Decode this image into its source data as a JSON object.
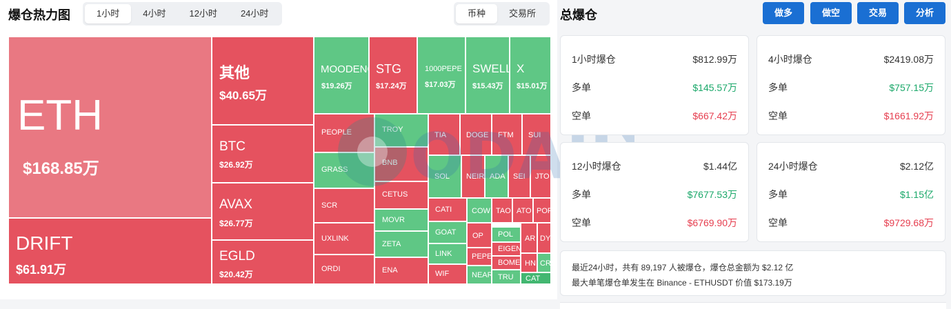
{
  "left": {
    "title": "爆仓热力图",
    "time_tabs": [
      "1小时",
      "4小时",
      "12小时",
      "24小时"
    ],
    "active_time_tab": "1小时",
    "type_tabs": [
      "币种",
      "交易所"
    ],
    "active_type_tab": "币种"
  },
  "tiles": [
    {
      "name": "ETH",
      "value": "$168.85万"
    },
    {
      "name": "DRIFT",
      "value": "$61.91万"
    },
    {
      "name": "其他",
      "value": "$40.65万"
    },
    {
      "name": "BTC",
      "value": "$26.92万"
    },
    {
      "name": "AVAX",
      "value": "$26.77万"
    },
    {
      "name": "EGLD",
      "value": "$20.42万"
    },
    {
      "name": "MOODENG",
      "value": "$19.26万"
    },
    {
      "name": "STG",
      "value": "$17.24万"
    },
    {
      "name": "1000PEPE",
      "value": "$17.03万"
    },
    {
      "name": "SWELL",
      "value": "$15.43万"
    },
    {
      "name": "X",
      "value": "$15.01万"
    },
    {
      "name": "PEOPLE"
    },
    {
      "name": "TROY"
    },
    {
      "name": "GRASS"
    },
    {
      "name": "BNB"
    },
    {
      "name": "SCR"
    },
    {
      "name": "CETUS"
    },
    {
      "name": "UXLINK"
    },
    {
      "name": "MOVR"
    },
    {
      "name": "ZETA"
    },
    {
      "name": "ORDI"
    },
    {
      "name": "ENA"
    },
    {
      "name": "TIA"
    },
    {
      "name": "DOGE"
    },
    {
      "name": "FTM"
    },
    {
      "name": "SUI"
    },
    {
      "name": "SOL"
    },
    {
      "name": "NEIR"
    },
    {
      "name": "ADA"
    },
    {
      "name": "SEI"
    },
    {
      "name": "JTO"
    },
    {
      "name": "CATI"
    },
    {
      "name": "COW"
    },
    {
      "name": "TAO"
    },
    {
      "name": "ATO"
    },
    {
      "name": "POP"
    },
    {
      "name": "GOAT"
    },
    {
      "name": "OP"
    },
    {
      "name": "POL"
    },
    {
      "name": "AR"
    },
    {
      "name": "DY"
    },
    {
      "name": "LINK"
    },
    {
      "name": "PEPE"
    },
    {
      "name": "EIGEN"
    },
    {
      "name": "WIF"
    },
    {
      "name": "NEAR"
    },
    {
      "name": "BOME"
    },
    {
      "name": "HN"
    },
    {
      "name": "CR"
    },
    {
      "name": "TRU"
    },
    {
      "name": "CAT"
    }
  ],
  "right": {
    "title": "总爆仓",
    "buttons": [
      "做多",
      "做空",
      "交易",
      "分析"
    ],
    "cards": [
      {
        "label": "1小时爆仓",
        "total": "$812.99万",
        "long_label": "多单",
        "long": "$145.57万",
        "short_label": "空单",
        "short": "$667.42万"
      },
      {
        "label": "4小时爆仓",
        "total": "$2419.08万",
        "long_label": "多单",
        "long": "$757.15万",
        "short_label": "空单",
        "short": "$1661.92万"
      },
      {
        "label": "12小时爆仓",
        "total": "$1.44亿",
        "long_label": "多单",
        "long": "$7677.53万",
        "short_label": "空单",
        "short": "$6769.90万"
      },
      {
        "label": "24小时爆仓",
        "total": "$2.12亿",
        "long_label": "多单",
        "long": "$1.15亿",
        "short_label": "空单",
        "short": "$9729.68万"
      }
    ],
    "summary_line1": "最近24小时，共有 89,197 人被爆仓，爆仓总金额为 $2.12 亿",
    "summary_line2": "最大单笔爆仓单发生在 Binance - ETHUSDT 价值 $173.19万"
  },
  "watermark": "ODAILY",
  "colors": {
    "pink": "#e97882",
    "red": "#e5525f",
    "green": "#5fc785",
    "button_blue": "#1a6fd3",
    "up": "#1ba86a",
    "down": "#e63e4f"
  }
}
